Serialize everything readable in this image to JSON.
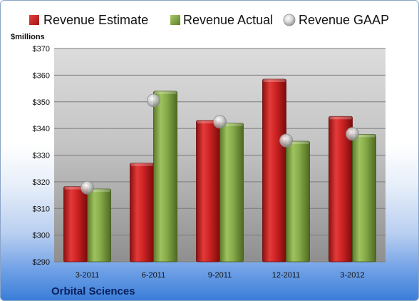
{
  "chart_data": {
    "type": "bar",
    "title": "",
    "company": "Orbital Sciences",
    "unit_label": "$millions",
    "xlabel": "",
    "ylabel": "",
    "ylim": [
      290,
      370
    ],
    "y_ticks": [
      "$290",
      "$300",
      "$310",
      "$320",
      "$330",
      "$340",
      "$350",
      "$360",
      "$370"
    ],
    "y_tick_values": [
      290,
      300,
      310,
      320,
      330,
      340,
      350,
      360,
      370
    ],
    "categories": [
      "3-2011",
      "6-2011",
      "9-2011",
      "12-2011",
      "3-2012"
    ],
    "series": [
      {
        "name": "Revenue Estimate",
        "kind": "bar",
        "color": "#d42a2a",
        "values": [
          318.2,
          327.0,
          343.0,
          358.5,
          344.5
        ]
      },
      {
        "name": "Revenue Actual",
        "kind": "bar",
        "color": "#8cb050",
        "values": [
          317.3,
          354.0,
          342.0,
          335.2,
          337.8
        ]
      },
      {
        "name": "Revenue GAAP",
        "kind": "marker",
        "color": "#c8c8c8",
        "values": [
          317.8,
          350.5,
          342.5,
          335.5,
          338.0
        ]
      }
    ],
    "grid": true,
    "legend_position": "top"
  }
}
